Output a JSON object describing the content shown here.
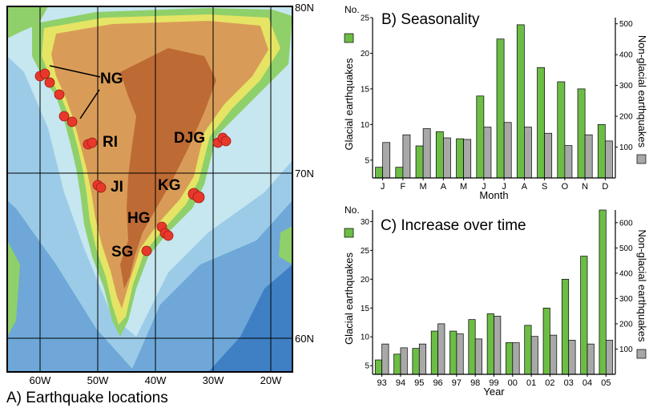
{
  "map": {
    "caption": "A) Earthquake locations",
    "lat_labels": [
      "80N",
      "70N",
      "60N"
    ],
    "lon_labels": [
      "60W",
      "50W",
      "40W",
      "30W",
      "20W"
    ],
    "regions": [
      {
        "code": "NG"
      },
      {
        "code": "RI"
      },
      {
        "code": "DJG"
      },
      {
        "code": "JI"
      },
      {
        "code": "KG"
      },
      {
        "code": "HG"
      },
      {
        "code": "SG"
      }
    ],
    "colors": {
      "ocean_deep": "#3f7fc4",
      "ocean_mid": "#7fb2de",
      "ocean_shelf": "#bfe0ef",
      "coast": "#8fd06a",
      "lowland": "#e8e66a",
      "highland": "#d79a55",
      "ice_high": "#b35f2e",
      "quake": "#e8372b"
    }
  },
  "chart_data": [
    {
      "type": "bar",
      "title": "B) Seasonality",
      "xlabel": "Month",
      "ylabel": "Glacial earthquakes",
      "y2label": "Non-glacial earthquakes",
      "ylabel_top": "No.",
      "categories": [
        "J",
        "F",
        "M",
        "A",
        "M",
        "J",
        "J",
        "A",
        "S",
        "O",
        "N",
        "D"
      ],
      "ylim": [
        2.5,
        25
      ],
      "yticks": [
        5,
        10,
        15,
        20,
        25
      ],
      "y2lim": [
        0,
        520
      ],
      "y2ticks": [
        100,
        200,
        300,
        400,
        500
      ],
      "series": [
        {
          "name": "Glacial earthquakes",
          "axis": "left",
          "color": "#6cbd45",
          "values": [
            4,
            4,
            7,
            9,
            8,
            14,
            22,
            24,
            18,
            16,
            15,
            10
          ]
        },
        {
          "name": "Non-glacial earthquakes",
          "axis": "right",
          "color": "#a8a8a8",
          "values": [
            115,
            140,
            160,
            130,
            125,
            165,
            180,
            165,
            145,
            105,
            140,
            120
          ]
        }
      ]
    },
    {
      "type": "bar",
      "title": "C) Increase over time",
      "xlabel": "Year",
      "ylabel": "Glacial earthquakes",
      "y2label": "Non-glacial earthquakes",
      "ylabel_top": "No.",
      "categories": [
        "93",
        "94",
        "95",
        "96",
        "97",
        "98",
        "99",
        "00",
        "01",
        "02",
        "03",
        "04",
        "05"
      ],
      "ylim": [
        3.5,
        32
      ],
      "yticks": [
        5,
        10,
        15,
        20,
        25,
        30
      ],
      "y2lim": [
        0,
        650
      ],
      "y2ticks": [
        100,
        200,
        300,
        400,
        500,
        600
      ],
      "series": [
        {
          "name": "Glacial earthquakes",
          "axis": "left",
          "color": "#6cbd45",
          "values": [
            6,
            7,
            8,
            11,
            11,
            13,
            14,
            9,
            12,
            15,
            20,
            24,
            32
          ]
        },
        {
          "name": "Non-glacial earthquakes",
          "axis": "right",
          "color": "#a8a8a8",
          "values": [
            120,
            105,
            120,
            200,
            160,
            140,
            230,
            125,
            150,
            155,
            135,
            120,
            135
          ]
        }
      ]
    }
  ]
}
